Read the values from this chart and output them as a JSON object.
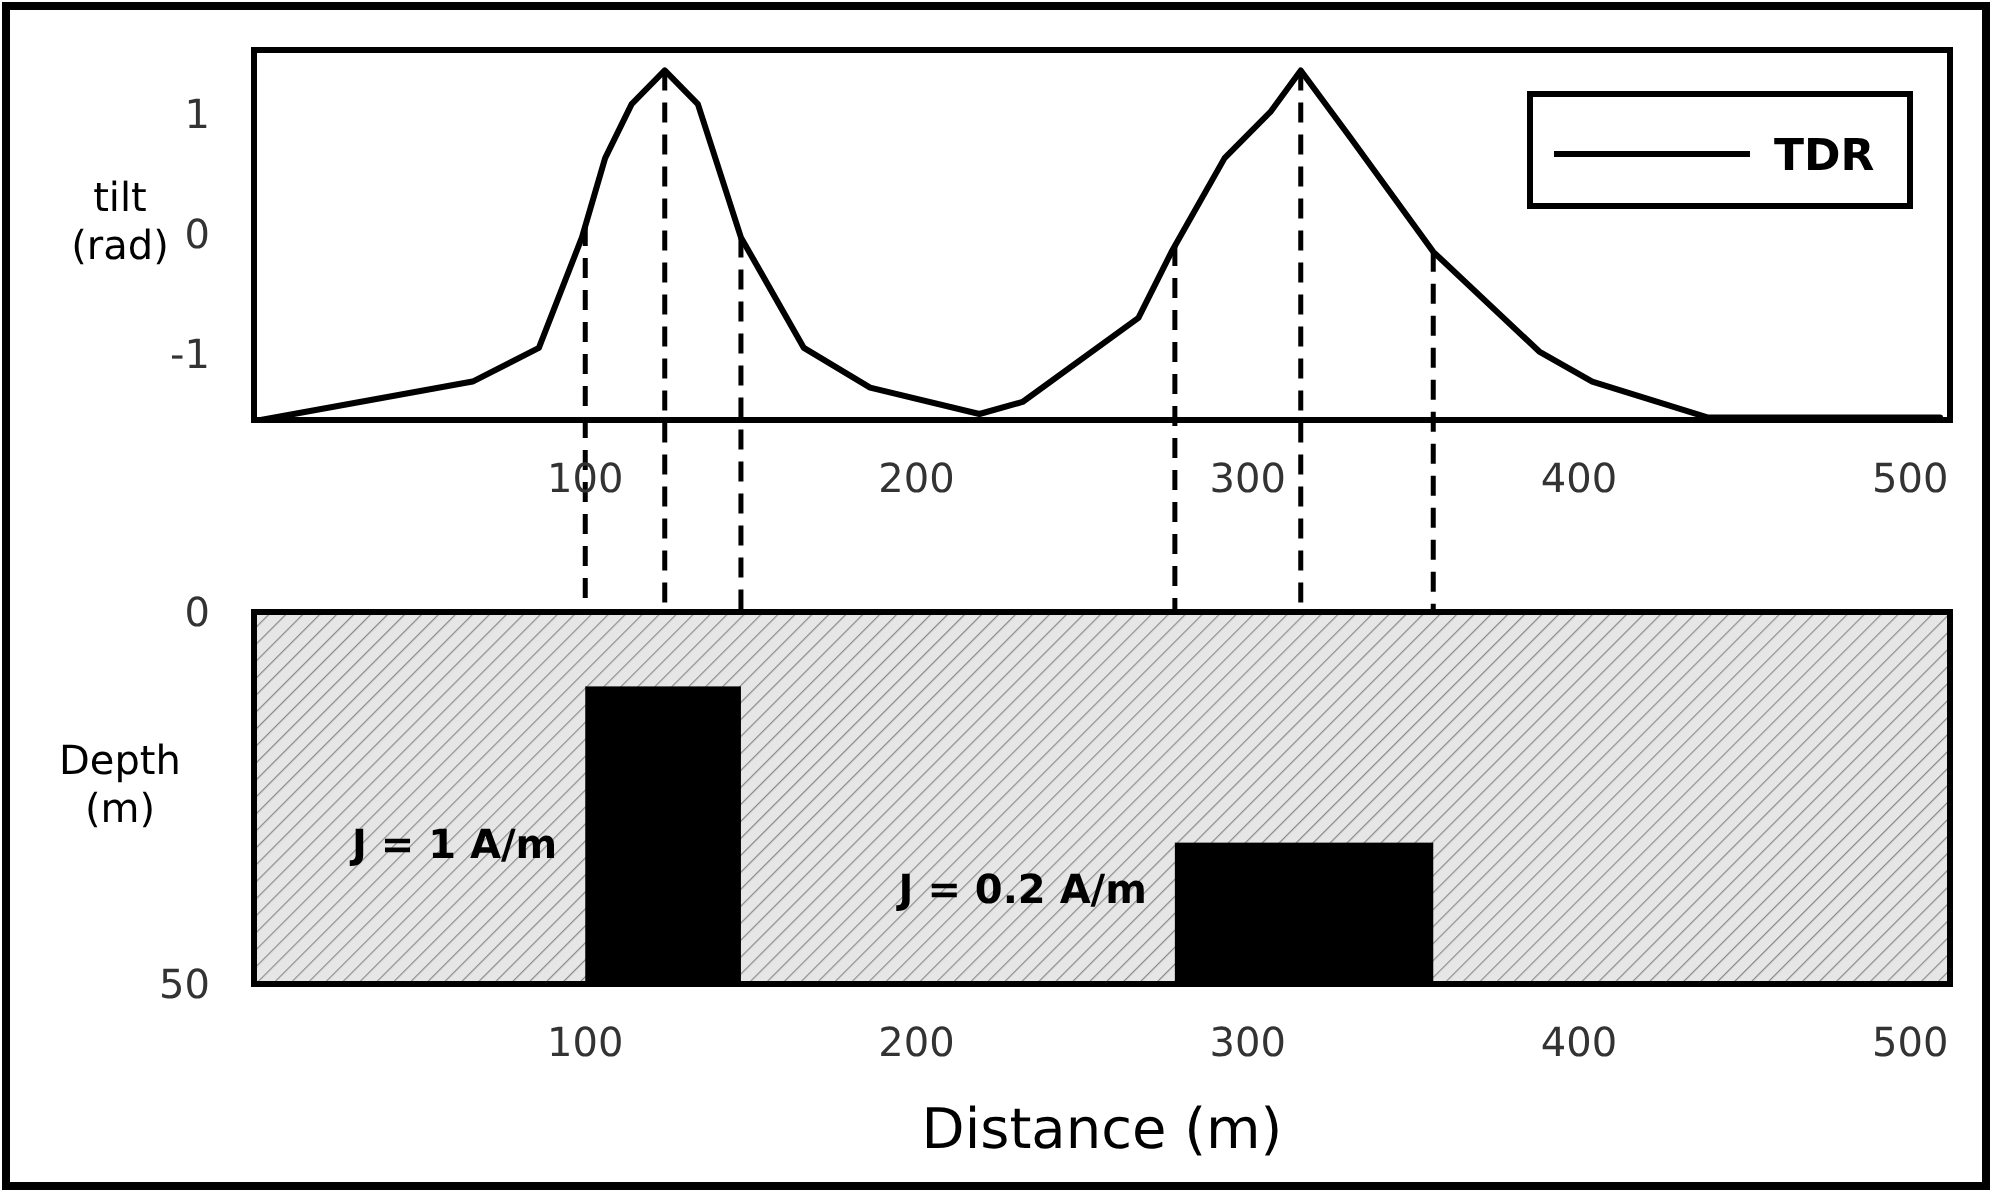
{
  "chart_data": [
    {
      "type": "line",
      "ylabel": "tilt (rad)",
      "xlim": [
        0,
        512
      ],
      "ylim": [
        -1.55,
        1.53
      ],
      "xticks": [
        100,
        200,
        300,
        400,
        500
      ],
      "yticks": [
        -1,
        0,
        1
      ],
      "legend": "top right",
      "grid": false,
      "marker": "none",
      "series": [
        {
          "name": "TDR",
          "color": "#000000",
          "line_style": "solid",
          "x": [
            2,
            66,
            86,
            99,
            106,
            114,
            124,
            134,
            147,
            166,
            186,
            219,
            232,
            267,
            277,
            293,
            307,
            316,
            331,
            356,
            388,
            404,
            439,
            509
          ],
          "values": [
            -1.55,
            -1.23,
            -0.95,
            -0.03,
            0.63,
            1.08,
            1.36,
            1.08,
            -0.03,
            -0.95,
            -1.28,
            -1.5,
            -1.4,
            -0.7,
            -0.15,
            0.63,
            1.02,
            1.36,
            0.8,
            -0.15,
            -0.98,
            -1.23,
            -1.53,
            -1.53
          ]
        }
      ],
      "ref_lines": [
        {
          "axis": "x",
          "value": 100,
          "line_style": "dashed"
        },
        {
          "axis": "x",
          "value": 124,
          "line_style": "dashed"
        },
        {
          "axis": "x",
          "value": 147,
          "line_style": "dashed"
        },
        {
          "axis": "x",
          "value": 278,
          "line_style": "dashed"
        },
        {
          "axis": "x",
          "value": 316,
          "line_style": "dashed"
        },
        {
          "axis": "x",
          "value": 356,
          "line_style": "dashed"
        }
      ]
    },
    {
      "type": "histogram",
      "xlabel": "Distance (m)",
      "ylabel": "Depth (m)",
      "xlim": [
        0,
        512
      ],
      "ylim": [
        50,
        0
      ],
      "xticks": [
        100,
        200,
        300,
        400,
        500
      ],
      "yticks": [
        0,
        50
      ],
      "color": "#000000",
      "bins": [
        100,
        147,
        278,
        356
      ],
      "base": [
        50,
        null,
        50
      ],
      "values": [
        -40,
        null,
        -19
      ],
      "annotations": [
        "J = 1 A/m",
        "J = 0.2 A/m"
      ]
    }
  ]
}
